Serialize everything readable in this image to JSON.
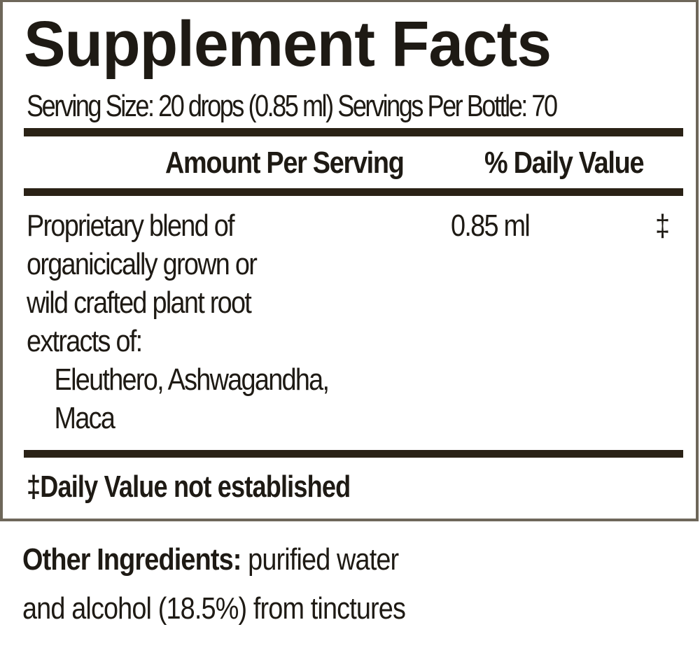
{
  "title": "Supplement Facts",
  "serving_line": "Serving Size: 20 drops (0.85 ml)  Servings Per Bottle: 70",
  "header": {
    "amount": "Amount Per Serving",
    "daily_value": "% Daily Value"
  },
  "ingredient": {
    "lines": [
      "Proprietary blend of",
      "organicically grown or",
      "wild crafted plant root",
      "extracts of:"
    ],
    "sub_lines": [
      "Eleuthero, Ashwagandha,",
      "Maca"
    ],
    "amount": "0.85 ml",
    "daily_value": "‡"
  },
  "footnote": "‡Daily Value not established",
  "other_ingredients": {
    "label": "Other Ingredients:",
    "text_line1": " purified water",
    "text_line2": "and alcohol (18.5%) from tinctures"
  },
  "colors": {
    "border": "#6e675a",
    "rule": "#2a2216",
    "text": "#1e1a14"
  }
}
